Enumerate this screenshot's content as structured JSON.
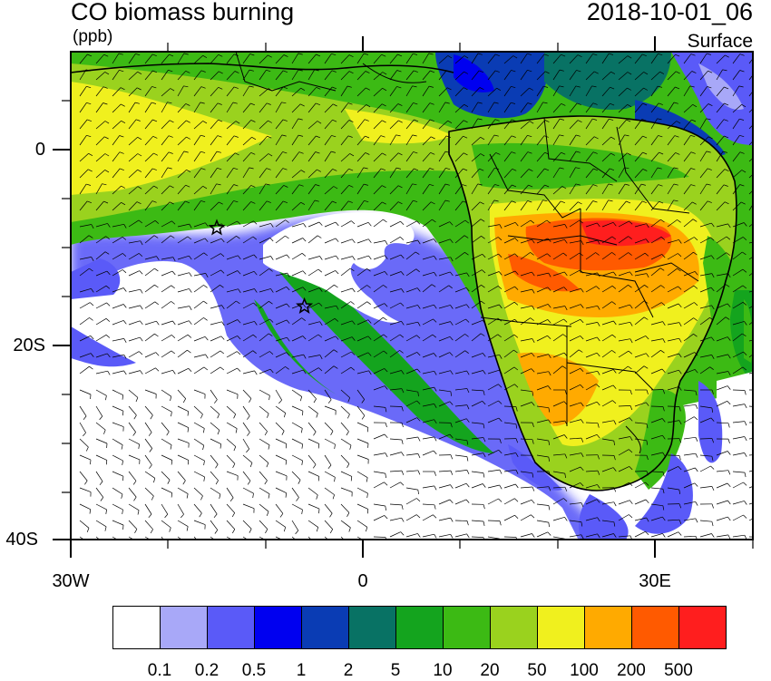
{
  "title": "CO biomass burning",
  "units": "(ppb)",
  "datetime": "2018-10-01_06",
  "level": "Surface",
  "lat_labels": [
    "0",
    "20S",
    "40S"
  ],
  "lon_labels": [
    "30W",
    "0",
    "30E"
  ],
  "colorbar": {
    "colors": [
      "#ffffff",
      "#a8a8f8",
      "#5a5af8",
      "#0000f0",
      "#0a3cb4",
      "#087264",
      "#14a41e",
      "#3cba14",
      "#9ad21e",
      "#f0f01e",
      "#ffaa00",
      "#ff5a00",
      "#ff1e1e"
    ],
    "labels": [
      "0.1",
      "0.2",
      "0.5",
      "1",
      "2",
      "5",
      "10",
      "20",
      "50",
      "100",
      "200",
      "500"
    ]
  },
  "markers": [
    {
      "name": "star-1",
      "lon": -15,
      "lat": -8
    },
    {
      "name": "star-2",
      "lon": -6,
      "lat": -16
    }
  ]
}
